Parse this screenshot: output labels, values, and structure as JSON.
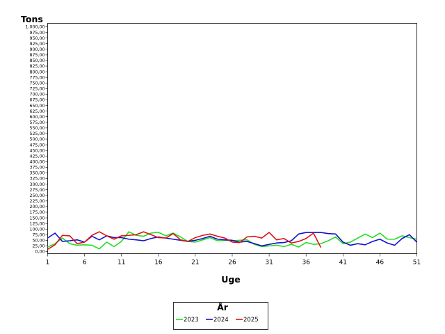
{
  "chart_data": {
    "type": "line",
    "ylabel": "Tons",
    "xlabel": "Uge",
    "ylim": [
      0,
      1000
    ],
    "xlim": [
      1,
      51
    ],
    "y_ticks": [
      "0,00",
      "25,00",
      "50,00",
      "75,00",
      "100,00",
      "125,00",
      "150,00",
      "175,00",
      "200,00",
      "225,00",
      "250,00",
      "275,00",
      "300,00",
      "325,00",
      "350,00",
      "375,00",
      "400,00",
      "425,00",
      "450,00",
      "475,00",
      "500,00",
      "525,00",
      "550,00",
      "575,00",
      "600,00",
      "625,00",
      "650,00",
      "675,00",
      "700,00",
      "725,00",
      "750,00",
      "775,00",
      "800,00",
      "825,00",
      "850,00",
      "875,00",
      "900,00",
      "925,00",
      "950,00",
      "975,00",
      "1.000,00"
    ],
    "x_ticks": [
      "1",
      "6",
      "11",
      "16",
      "21",
      "26",
      "31",
      "36",
      "41",
      "46",
      "51"
    ],
    "legend": {
      "title": "År",
      "placement": "bottom-center"
    },
    "series": [
      {
        "name": "2023",
        "color": "#22dd22",
        "x": [
          1,
          2,
          3,
          4,
          5,
          6,
          7,
          8,
          9,
          10,
          11,
          12,
          13,
          14,
          15,
          16,
          17,
          18,
          19,
          20,
          21,
          22,
          23,
          24,
          25,
          26,
          27,
          28,
          29,
          30,
          31,
          32,
          33,
          34,
          35,
          36,
          37,
          38,
          39,
          40,
          41,
          42,
          43,
          44,
          45,
          46,
          47,
          48,
          49,
          50,
          51
        ],
        "values": [
          20,
          35,
          60,
          35,
          28,
          30,
          28,
          12,
          42,
          22,
          45,
          88,
          72,
          68,
          82,
          86,
          70,
          82,
          65,
          45,
          42,
          52,
          62,
          48,
          50,
          48,
          50,
          52,
          32,
          22,
          25,
          28,
          22,
          32,
          20,
          40,
          32,
          35,
          48,
          65,
          35,
          42,
          60,
          78,
          62,
          82,
          55,
          55,
          70,
          62,
          55
        ]
      },
      {
        "name": "2024",
        "color": "#1111cc",
        "x": [
          1,
          2,
          3,
          4,
          5,
          6,
          7,
          8,
          9,
          10,
          11,
          12,
          13,
          14,
          15,
          16,
          17,
          18,
          19,
          20,
          21,
          22,
          23,
          24,
          25,
          26,
          27,
          28,
          29,
          30,
          31,
          32,
          33,
          34,
          35,
          36,
          37,
          38,
          39,
          40,
          41,
          42,
          43,
          44,
          45,
          46,
          47,
          48,
          49,
          50,
          51
        ],
        "values": [
          60,
          82,
          45,
          48,
          52,
          42,
          68,
          52,
          70,
          62,
          62,
          55,
          52,
          48,
          58,
          65,
          60,
          55,
          50,
          45,
          50,
          58,
          68,
          55,
          52,
          50,
          42,
          45,
          35,
          25,
          32,
          38,
          40,
          48,
          78,
          85,
          85,
          85,
          80,
          78,
          42,
          28,
          35,
          30,
          45,
          55,
          38,
          28,
          58,
          75,
          42
        ]
      },
      {
        "name": "2025",
        "color": "#dd1111",
        "x": [
          1,
          2,
          3,
          4,
          5,
          6,
          7,
          8,
          9,
          10,
          11,
          12,
          13,
          14,
          15,
          16,
          17,
          18,
          19,
          20,
          21,
          22,
          23,
          24,
          25,
          26,
          27,
          28,
          29,
          30,
          31,
          32,
          33,
          34,
          35,
          36,
          37,
          38
        ],
        "values": [
          10,
          30,
          72,
          70,
          35,
          42,
          72,
          88,
          70,
          55,
          70,
          72,
          75,
          88,
          75,
          62,
          60,
          80,
          52,
          45,
          62,
          72,
          78,
          68,
          60,
          42,
          40,
          65,
          68,
          60,
          85,
          52,
          58,
          38,
          45,
          58,
          82,
          18
        ]
      }
    ]
  }
}
